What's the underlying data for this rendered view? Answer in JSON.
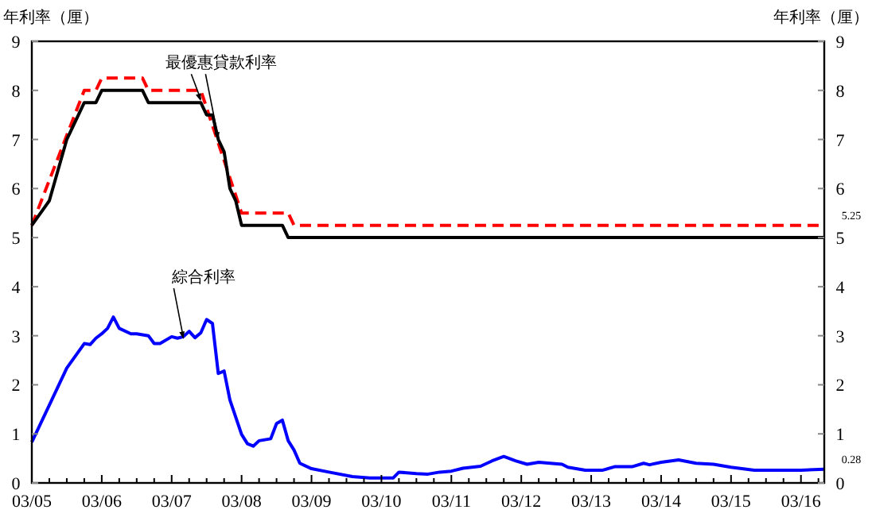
{
  "chart_data": {
    "type": "line",
    "ylabel": "年利率（厘）",
    "y2label": "年利率（厘）",
    "xlim": [
      "2005-03",
      "2016-07"
    ],
    "xticks": [
      {
        "value": "2005-03",
        "label": "03/05"
      },
      {
        "value": "2005-06",
        "label": null
      },
      {
        "value": "2005-09",
        "label": null
      },
      {
        "value": "2005-12",
        "label": null
      },
      {
        "value": "2006-03",
        "label": "03/06"
      },
      {
        "value": "2006-06",
        "label": null
      },
      {
        "value": "2006-09",
        "label": null
      },
      {
        "value": "2006-12",
        "label": null
      },
      {
        "value": "2007-03",
        "label": "03/07"
      },
      {
        "value": "2007-06",
        "label": null
      },
      {
        "value": "2007-09",
        "label": null
      },
      {
        "value": "2007-12",
        "label": null
      },
      {
        "value": "2008-03",
        "label": "03/08"
      },
      {
        "value": "2008-06",
        "label": null
      },
      {
        "value": "2008-09",
        "label": null
      },
      {
        "value": "2008-12",
        "label": null
      },
      {
        "value": "2009-03",
        "label": "03/09"
      },
      {
        "value": "2009-06",
        "label": null
      },
      {
        "value": "2009-09",
        "label": null
      },
      {
        "value": "2009-12",
        "label": null
      },
      {
        "value": "2010-03",
        "label": "03/10"
      },
      {
        "value": "2010-06",
        "label": null
      },
      {
        "value": "2010-09",
        "label": null
      },
      {
        "value": "2010-12",
        "label": null
      },
      {
        "value": "2011-03",
        "label": "03/11"
      },
      {
        "value": "2011-06",
        "label": null
      },
      {
        "value": "2011-09",
        "label": null
      },
      {
        "value": "2011-12",
        "label": null
      },
      {
        "value": "2012-03",
        "label": "03/12"
      },
      {
        "value": "2012-06",
        "label": null
      },
      {
        "value": "2012-09",
        "label": null
      },
      {
        "value": "2012-12",
        "label": null
      },
      {
        "value": "2013-03",
        "label": "03/13"
      },
      {
        "value": "2013-06",
        "label": null
      },
      {
        "value": "2013-09",
        "label": null
      },
      {
        "value": "2013-12",
        "label": null
      },
      {
        "value": "2014-03",
        "label": "03/14"
      },
      {
        "value": "2014-06",
        "label": null
      },
      {
        "value": "2014-09",
        "label": null
      },
      {
        "value": "2014-12",
        "label": null
      },
      {
        "value": "2015-03",
        "label": "03/15"
      },
      {
        "value": "2015-06",
        "label": null
      },
      {
        "value": "2015-09",
        "label": null
      },
      {
        "value": "2015-12",
        "label": null
      },
      {
        "value": "2016-03",
        "label": "03/16"
      },
      {
        "value": "2016-06",
        "label": null
      }
    ],
    "ylim": [
      0,
      9
    ],
    "yticks": [
      0,
      1,
      2,
      3,
      4,
      5,
      6,
      7,
      8,
      9
    ],
    "y2lim": [
      0,
      9
    ],
    "y2ticks": [
      0,
      1,
      2,
      3,
      4,
      5,
      6,
      7,
      8,
      9
    ],
    "grid": false,
    "marker": "none",
    "series": [
      {
        "color": "#ff0000",
        "line_style": "dashed",
        "x": [
          "2005-03",
          "2005-12",
          "2006-02",
          "2006-03",
          "2006-10",
          "2006-11",
          "2007-08",
          "2008-03",
          "2008-11",
          "2008-12",
          "2016-07"
        ],
        "values": [
          5.25,
          8.0,
          8.0,
          8.25,
          8.25,
          8.0,
          8.0,
          5.5,
          5.5,
          5.25,
          5.25
        ],
        "value_labels": [
          null,
          null,
          null,
          null,
          null,
          null,
          null,
          null,
          null,
          null,
          "5.25"
        ]
      },
      {
        "color": "#000000",
        "line_style": "solid",
        "x": [
          "2005-03",
          "2005-06",
          "2005-09",
          "2005-12",
          "2006-02",
          "2006-03",
          "2006-10",
          "2006-11",
          "2007-08",
          "2007-09",
          "2007-10",
          "2007-11",
          "2007-12",
          "2008-01",
          "2008-02",
          "2008-03",
          "2008-10",
          "2008-11",
          "2016-07"
        ],
        "values": [
          5.25,
          5.75,
          7.0,
          7.75,
          7.75,
          8.0,
          8.0,
          7.75,
          7.75,
          7.5,
          7.5,
          7.0,
          6.75,
          6.0,
          5.75,
          5.25,
          5.25,
          5.0,
          5.0
        ]
      },
      {
        "color": "#0000ff",
        "line_style": "solid",
        "x": [
          "2005-03",
          "2005-09",
          "2005-12",
          "2006-01",
          "2006-02",
          "2006-03",
          "2006-04",
          "2006-05",
          "2006-06",
          "2006-08",
          "2006-09",
          "2006-11",
          "2006-12",
          "2007-01",
          "2007-03",
          "2007-04",
          "2007-05",
          "2007-06",
          "2007-07",
          "2007-08",
          "2007-09",
          "2007-10",
          "2007-11",
          "2007-12",
          "2008-01",
          "2008-03",
          "2008-04",
          "2008-05",
          "2008-06",
          "2008-08",
          "2008-09",
          "2008-10",
          "2008-11",
          "2008-12",
          "2009-01",
          "2009-03",
          "2009-06",
          "2009-10",
          "2010-01",
          "2010-05",
          "2010-06",
          "2010-09",
          "2010-11",
          "2011-01",
          "2011-03",
          "2011-05",
          "2011-08",
          "2011-10",
          "2011-12",
          "2012-02",
          "2012-04",
          "2012-06",
          "2012-10",
          "2012-11",
          "2013-02",
          "2013-05",
          "2013-07",
          "2013-10",
          "2013-12",
          "2014-01",
          "2014-03",
          "2014-06",
          "2014-09",
          "2014-12",
          "2015-03",
          "2015-07",
          "2015-11",
          "2016-03",
          "2016-07"
        ],
        "values": [
          0.83,
          2.34,
          2.84,
          2.82,
          2.95,
          3.04,
          3.15,
          3.38,
          3.15,
          3.04,
          3.04,
          3.0,
          2.84,
          2.84,
          2.98,
          2.95,
          2.98,
          3.09,
          2.96,
          3.06,
          3.33,
          3.25,
          2.23,
          2.28,
          1.69,
          0.99,
          0.8,
          0.75,
          0.86,
          0.9,
          1.21,
          1.28,
          0.86,
          0.67,
          0.4,
          0.29,
          0.22,
          0.13,
          0.1,
          0.1,
          0.22,
          0.19,
          0.18,
          0.22,
          0.24,
          0.3,
          0.34,
          0.45,
          0.54,
          0.45,
          0.38,
          0.42,
          0.38,
          0.32,
          0.26,
          0.26,
          0.33,
          0.33,
          0.4,
          0.37,
          0.42,
          0.47,
          0.4,
          0.38,
          0.32,
          0.26,
          0.26,
          0.26,
          0.28
        ],
        "value_labels": [
          null,
          null,
          null,
          null,
          null,
          null,
          null,
          null,
          null,
          null,
          null,
          null,
          null,
          null,
          null,
          null,
          null,
          null,
          null,
          null,
          null,
          null,
          null,
          null,
          null,
          null,
          null,
          null,
          null,
          null,
          null,
          null,
          null,
          null,
          null,
          null,
          null,
          null,
          null,
          null,
          null,
          null,
          null,
          null,
          null,
          null,
          null,
          null,
          null,
          null,
          null,
          null,
          null,
          null,
          null,
          null,
          null,
          null,
          null,
          null,
          null,
          null,
          null,
          null,
          null,
          null,
          null,
          null,
          "0.28"
        ]
      }
    ],
    "annotations": [
      {
        "text": "最優惠貸款利率",
        "x": "2007-08",
        "y": 7.75
      },
      {
        "text": "綜合利率",
        "x": "2007-05",
        "y": 2.9
      }
    ]
  }
}
